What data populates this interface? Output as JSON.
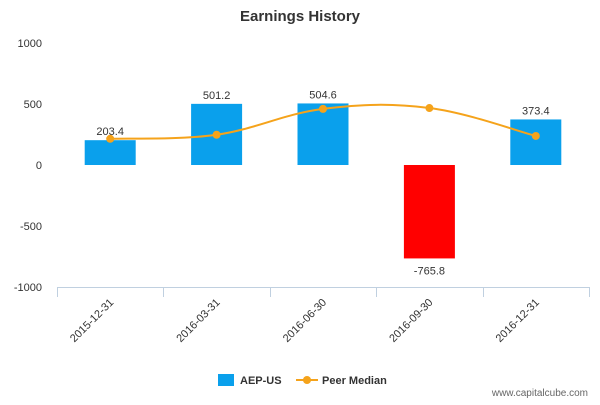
{
  "chart_data": {
    "type": "bar",
    "title": "Earnings History",
    "categories": [
      "2015-12-31",
      "2016-03-31",
      "2016-06-30",
      "2016-09-30",
      "2016-12-31"
    ],
    "series": [
      {
        "name": "AEP-US",
        "type": "bar",
        "values": [
          203.4,
          501.2,
          504.6,
          -765.8,
          373.4
        ],
        "color": "#0aa0ec",
        "negative_color": "#ff0000",
        "data_labels": [
          "203.4",
          "501.2",
          "504.6",
          "-765.8",
          "373.4"
        ]
      },
      {
        "name": "Peer Median",
        "type": "line",
        "smooth": true,
        "values": [
          215,
          248,
          460,
          467,
          238
        ],
        "color": "#f5a31b"
      }
    ],
    "ylim": [
      -1000,
      1000
    ],
    "yticks": [
      1000,
      500,
      0,
      -500,
      -1000
    ],
    "ytick_labels": [
      "1000",
      "500",
      "0",
      "-500",
      "-1000"
    ],
    "xlabel": "",
    "ylabel": "",
    "grid": false,
    "legend_position": "bottom"
  },
  "watermark": "www.capitalcube.com"
}
